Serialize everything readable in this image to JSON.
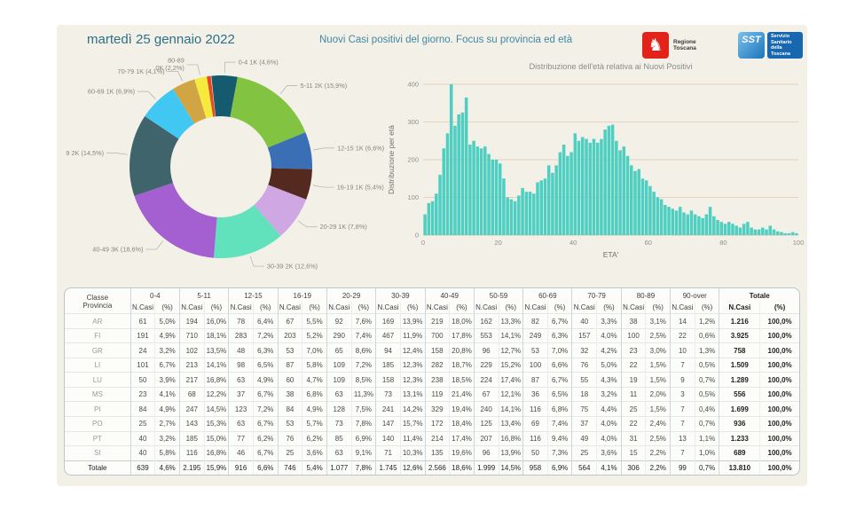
{
  "page": {
    "date_title": "martedì 25 gennaio 2022",
    "main_title": "Nuovi Casi positivi del giorno. Focus su provincia ed età"
  },
  "logos": {
    "regione_toscana": {
      "label": "Regione Toscana",
      "color": "#e2231a"
    },
    "sst": {
      "abbr": "SST",
      "label_lines": [
        "Servizio",
        "Sanitario",
        "della",
        "Toscana"
      ],
      "color": "#1767b1"
    }
  },
  "colors": {
    "panel_bg": "#f3f0e8",
    "title_teal": "#2d7086",
    "histogram_bar": "#4fcfc2",
    "gridline_tan": "#dcc9b0",
    "axis_text": "#8f8f8f",
    "table_border": "#b7c6cf"
  },
  "chart_data": [
    {
      "type": "pie",
      "donut": true,
      "start_angle": -6,
      "legend_position": "outside-labels",
      "slices": [
        {
          "label": "0-4",
          "amount": "1K",
          "pct": 4.6,
          "pct_label": "(4,6%)",
          "color": "#155a6e"
        },
        {
          "label": "5-11",
          "amount": "2K",
          "pct": 15.9,
          "pct_label": "(15,9%)",
          "color": "#82c341"
        },
        {
          "label": "12-15",
          "amount": "1K",
          "pct": 6.6,
          "pct_label": "(6,6%)",
          "color": "#3a6fb5"
        },
        {
          "label": "16-19",
          "amount": "1K",
          "pct": 5.4,
          "pct_label": "(5,4%)",
          "color": "#542a20"
        },
        {
          "label": "20-29",
          "amount": "1K",
          "pct": 7.8,
          "pct_label": "(7,8%)",
          "color": "#cfa7e3"
        },
        {
          "label": "30-39",
          "amount": "2K",
          "pct": 12.6,
          "pct_label": "(12,6%)",
          "color": "#61e2bd"
        },
        {
          "label": "40-49",
          "amount": "3K",
          "pct": 18.6,
          "pct_label": "(18,6%)",
          "color": "#a45fd1"
        },
        {
          "label": "50-59",
          "amount": "2K",
          "pct": 14.5,
          "pct_label": "(14,5%)",
          "color": "#3f646c"
        },
        {
          "label": "60-69",
          "amount": "1K",
          "pct": 6.9,
          "pct_label": "(6,9%)",
          "color": "#41c8f2"
        },
        {
          "label": "70-79",
          "amount": "1K",
          "pct": 4.1,
          "pct_label": "(4,1%)",
          "color": "#d2a544"
        },
        {
          "label": "80-89",
          "amount": "0K",
          "pct": 2.2,
          "pct_label": "(2,2%)",
          "color": "#f5ea3d",
          "two_line": true
        },
        {
          "label": null,
          "amount": "0K",
          "pct": 0.7,
          "pct_label": "(0,7%)",
          "color": "#e64a1e"
        }
      ]
    },
    {
      "type": "bar",
      "title": "Distribuzione dell'età relativa ai Nuovi Positivi",
      "xlabel": "ETA'",
      "ylabel": "Distribuzione per età",
      "x_range": [
        0,
        100
      ],
      "bin_width": 1,
      "x_ticks": [
        0,
        20,
        40,
        60,
        80,
        100
      ],
      "y_ticks": [
        0,
        100,
        200,
        300,
        400
      ],
      "ylim": [
        0,
        420
      ],
      "grid": true,
      "bar_color": "#4fcfc2",
      "values": [
        55,
        85,
        90,
        110,
        160,
        230,
        270,
        400,
        290,
        320,
        325,
        365,
        240,
        250,
        235,
        230,
        235,
        215,
        200,
        200,
        190,
        150,
        100,
        95,
        90,
        105,
        125,
        115,
        115,
        110,
        140,
        145,
        150,
        185,
        165,
        185,
        220,
        240,
        210,
        220,
        270,
        250,
        260,
        255,
        245,
        255,
        245,
        255,
        280,
        290,
        293,
        250,
        225,
        235,
        210,
        185,
        170,
        175,
        150,
        145,
        130,
        115,
        100,
        95,
        80,
        75,
        70,
        65,
        75,
        60,
        55,
        65,
        55,
        50,
        45,
        55,
        75,
        50,
        40,
        35,
        30,
        35,
        30,
        25,
        20,
        30,
        35,
        20,
        15,
        15,
        20,
        15,
        25,
        15,
        10,
        8,
        5,
        5,
        8,
        5
      ]
    }
  ],
  "table": {
    "corner_top": "Classe",
    "corner_bottom": "Provincia",
    "groups": [
      "0-4",
      "5-11",
      "12-15",
      "16-19",
      "20-29",
      "30-39",
      "40-49",
      "50-59",
      "60-69",
      "70-79",
      "80-89",
      "90-over",
      "Totale"
    ],
    "subheaders": [
      "N.Casi",
      "(%)"
    ],
    "rows": [
      {
        "label": "AR",
        "cells": [
          "61",
          "5,0%",
          "194",
          "16,0%",
          "78",
          "6,4%",
          "67",
          "5,5%",
          "92",
          "7,6%",
          "169",
          "13,9%",
          "219",
          "18,0%",
          "162",
          "13,3%",
          "82",
          "6,7%",
          "40",
          "3,3%",
          "38",
          "3,1%",
          "14",
          "1,2%",
          "1.216",
          "100,0%"
        ]
      },
      {
        "label": "FI",
        "cells": [
          "191",
          "4,9%",
          "710",
          "18,1%",
          "283",
          "7,2%",
          "203",
          "5,2%",
          "290",
          "7,4%",
          "467",
          "11,9%",
          "700",
          "17,8%",
          "553",
          "14,1%",
          "249",
          "6,3%",
          "157",
          "4,0%",
          "100",
          "2,5%",
          "22",
          "0,6%",
          "3.925",
          "100,0%"
        ]
      },
      {
        "label": "GR",
        "cells": [
          "24",
          "3,2%",
          "102",
          "13,5%",
          "48",
          "6,3%",
          "53",
          "7,0%",
          "65",
          "8,6%",
          "94",
          "12,4%",
          "158",
          "20,8%",
          "96",
          "12,7%",
          "53",
          "7,0%",
          "32",
          "4,2%",
          "23",
          "3,0%",
          "10",
          "1,3%",
          "758",
          "100,0%"
        ]
      },
      {
        "label": "LI",
        "cells": [
          "101",
          "6,7%",
          "213",
          "14,1%",
          "98",
          "6,5%",
          "87",
          "5,8%",
          "109",
          "7,2%",
          "185",
          "12,3%",
          "282",
          "18,7%",
          "229",
          "15,2%",
          "100",
          "6,6%",
          "76",
          "5,0%",
          "22",
          "1,5%",
          "7",
          "0,5%",
          "1.509",
          "100,0%"
        ]
      },
      {
        "label": "LU",
        "cells": [
          "50",
          "3,9%",
          "217",
          "16,8%",
          "63",
          "4,9%",
          "60",
          "4,7%",
          "109",
          "8,5%",
          "158",
          "12,3%",
          "238",
          "18,5%",
          "224",
          "17,4%",
          "87",
          "6,7%",
          "55",
          "4,3%",
          "19",
          "1,5%",
          "9",
          "0,7%",
          "1.289",
          "100,0%"
        ]
      },
      {
        "label": "MS",
        "cells": [
          "23",
          "4,1%",
          "68",
          "12,2%",
          "37",
          "6,7%",
          "38",
          "6,8%",
          "63",
          "11,3%",
          "73",
          "13,1%",
          "119",
          "21,4%",
          "67",
          "12,1%",
          "36",
          "6,5%",
          "18",
          "3,2%",
          "11",
          "2,0%",
          "3",
          "0,5%",
          "556",
          "100,0%"
        ]
      },
      {
        "label": "PI",
        "cells": [
          "84",
          "4,9%",
          "247",
          "14,5%",
          "123",
          "7,2%",
          "84",
          "4,9%",
          "128",
          "7,5%",
          "241",
          "14,2%",
          "329",
          "19,4%",
          "240",
          "14,1%",
          "116",
          "6,8%",
          "75",
          "4,4%",
          "25",
          "1,5%",
          "7",
          "0,4%",
          "1.699",
          "100,0%"
        ]
      },
      {
        "label": "PO",
        "cells": [
          "25",
          "2,7%",
          "143",
          "15,3%",
          "63",
          "6,7%",
          "53",
          "5,7%",
          "73",
          "7,8%",
          "147",
          "15,7%",
          "172",
          "18,4%",
          "125",
          "13,4%",
          "69",
          "7,4%",
          "37",
          "4,0%",
          "22",
          "2,4%",
          "7",
          "0,7%",
          "936",
          "100,0%"
        ]
      },
      {
        "label": "PT",
        "cells": [
          "40",
          "3,2%",
          "185",
          "15,0%",
          "77",
          "6,2%",
          "76",
          "6,2%",
          "85",
          "6,9%",
          "140",
          "11,4%",
          "214",
          "17,4%",
          "207",
          "16,8%",
          "116",
          "9,4%",
          "49",
          "4,0%",
          "31",
          "2,5%",
          "13",
          "1,1%",
          "1.233",
          "100,0%"
        ]
      },
      {
        "label": "SI",
        "cells": [
          "40",
          "5,8%",
          "116",
          "16,8%",
          "46",
          "6,7%",
          "25",
          "3,6%",
          "63",
          "9,1%",
          "71",
          "10,3%",
          "135",
          "19,6%",
          "96",
          "13,9%",
          "50",
          "7,3%",
          "25",
          "3,6%",
          "15",
          "2,2%",
          "7",
          "1,0%",
          "689",
          "100,0%"
        ]
      },
      {
        "label": "Totale",
        "bold": true,
        "cells": [
          "639",
          "4,6%",
          "2.195",
          "15,9%",
          "916",
          "6,6%",
          "746",
          "5,4%",
          "1.077",
          "7,8%",
          "1.745",
          "12,6%",
          "2.566",
          "18,6%",
          "1.999",
          "14,5%",
          "958",
          "6,9%",
          "564",
          "4,1%",
          "306",
          "2,2%",
          "99",
          "0,7%",
          "13.810",
          "100,0%"
        ]
      }
    ]
  }
}
